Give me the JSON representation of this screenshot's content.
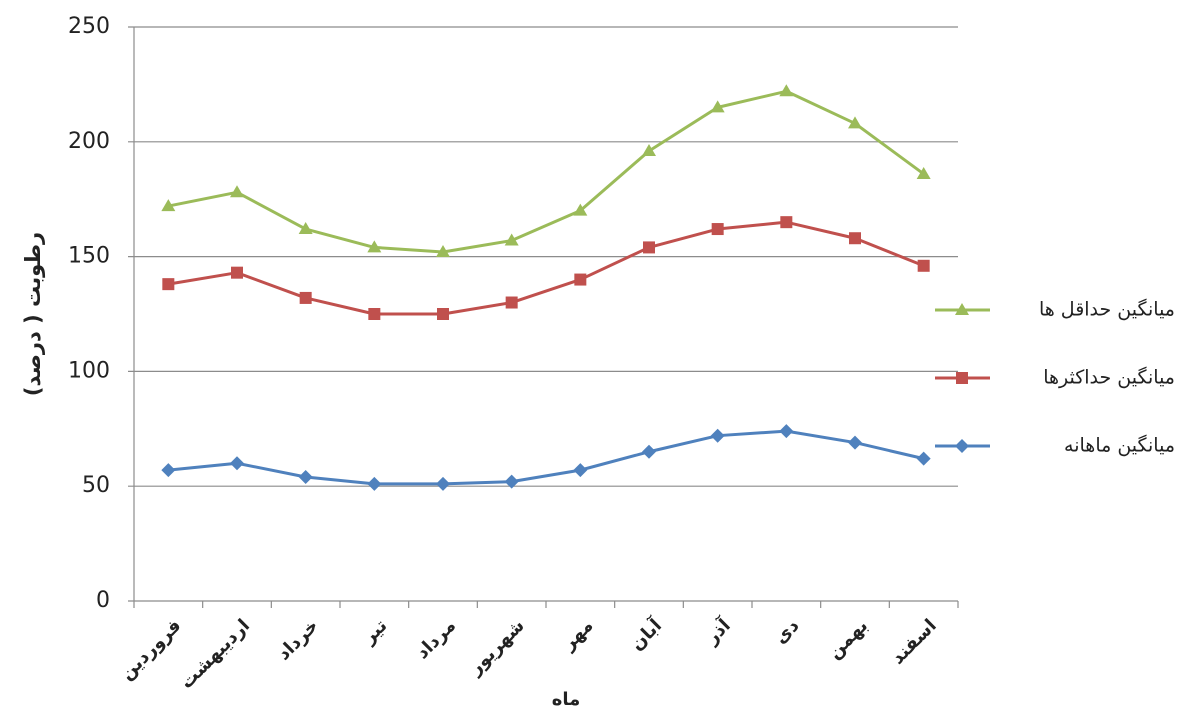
{
  "chart_data": {
    "type": "line",
    "y_label": "رطوبت ( درصد)",
    "x_label": "ماه",
    "categories": [
      "فروردین",
      "اردیبهشت",
      "خرداد",
      "تیر",
      "مرداد",
      "شهریور",
      "مهر",
      "آبان",
      "آذر",
      "دی",
      "بهمن",
      "اسفند"
    ],
    "series": [
      {
        "name": "میانگین حداقل ها",
        "color": "#9bbb59",
        "marker": "triangle",
        "values": [
          172,
          178,
          162,
          154,
          152,
          157,
          170,
          196,
          215,
          222,
          208,
          186
        ]
      },
      {
        "name": "میانگین حداکثرها",
        "color": "#c0504d",
        "marker": "square",
        "values": [
          138,
          143,
          132,
          125,
          125,
          130,
          140,
          154,
          162,
          165,
          158,
          146
        ]
      },
      {
        "name": "میانگین ماهانه",
        "color": "#4f81bd",
        "marker": "diamond",
        "values": [
          57,
          60,
          54,
          51,
          51,
          52,
          57,
          65,
          72,
          74,
          69,
          62
        ]
      }
    ],
    "ylim": [
      0,
      250
    ],
    "yticks": [
      0,
      50,
      100,
      150,
      200,
      250
    ],
    "grid": true,
    "legend": "right"
  }
}
